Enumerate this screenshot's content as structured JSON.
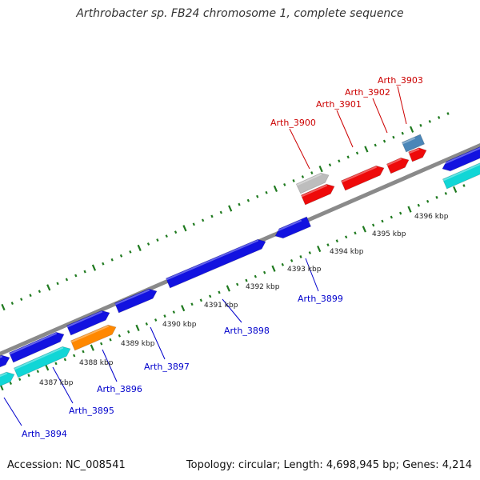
{
  "header": {
    "title": "Arthrobacter sp. FB24 chromosome 1, complete sequence"
  },
  "footer": {
    "accession": "Accession: NC_008541",
    "summary": "Topology: circular; Length: 4,698,945 bp; Genes: 4,214"
  },
  "colors": {
    "backbone": "#8a8a8a",
    "tick": "#1f7a1f",
    "forward_label": "#cc0000",
    "reverse_label": "#0000cc",
    "gene_blue": "#1212e0",
    "gene_cyan": "#11d6d6",
    "gene_orange": "#ff8800",
    "gene_red": "#ee0a0a",
    "gene_gray": "#bdbdbd",
    "gene_steel": "#4a86b8"
  },
  "scale": {
    "tick_labels": [
      "4387 kbp",
      "4388 kbp",
      "4389 kbp",
      "4390 kbp",
      "4391 kbp",
      "4392 kbp",
      "4393 kbp",
      "4394 kbp",
      "4395 kbp",
      "4396 kbp"
    ]
  },
  "genes": {
    "forward_labels": [
      "Arth_3900",
      "Arth_3901",
      "Arth_3902",
      "Arth_3903"
    ],
    "reverse_labels": [
      "Arth_3894",
      "Arth_3895",
      "Arth_3896",
      "Arth_3897",
      "Arth_3898",
      "Arth_3899"
    ]
  }
}
